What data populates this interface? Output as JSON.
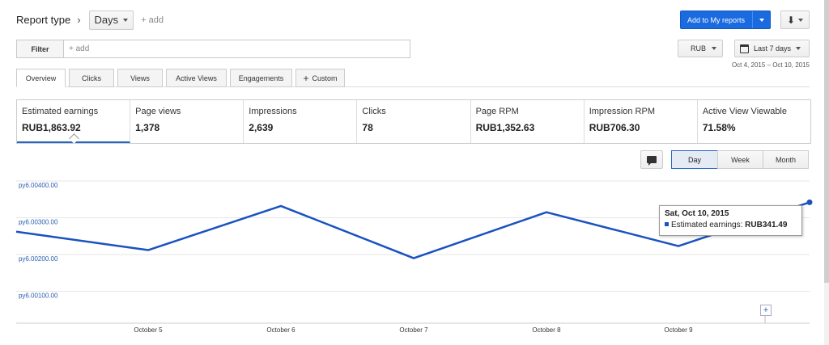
{
  "header": {
    "report_type": "Report type",
    "chevron": "›",
    "days": "Days",
    "add": "+ add"
  },
  "actions": {
    "add_to_reports": "Add to My reports",
    "download": "⬇"
  },
  "filter": {
    "label": "Filter",
    "add": "+ add"
  },
  "currency": "RUB",
  "date_range": {
    "label": "Last 7 days",
    "range": "Oct 4, 2015 – Oct 10, 2015"
  },
  "tabs": [
    {
      "label": "Overview"
    },
    {
      "label": "Clicks"
    },
    {
      "label": "Views"
    },
    {
      "label": "Active Views"
    },
    {
      "label": "Engagements"
    },
    {
      "label": "Custom",
      "icon": "plus-icon"
    }
  ],
  "metrics": [
    {
      "name": "Estimated earnings",
      "value": "RUB1,863.92"
    },
    {
      "name": "Page views",
      "value": "1,378"
    },
    {
      "name": "Impressions",
      "value": "2,639"
    },
    {
      "name": "Clicks",
      "value": "78"
    },
    {
      "name": "Page RPM",
      "value": "RUB1,352.63"
    },
    {
      "name": "Impression RPM",
      "value": "RUB706.30"
    },
    {
      "name": "Active View Viewable",
      "value": "71.58%"
    }
  ],
  "granularity": {
    "day": "Day",
    "week": "Week",
    "month": "Month",
    "selected": "Day"
  },
  "tooltip": {
    "date": "Sat, Oct 10, 2015",
    "metric": "Estimated earnings:",
    "value": "RUB341.49"
  },
  "colors": {
    "line": "#1a52c0",
    "accent": "#1a6ae0",
    "grid": "#e6e6e6"
  },
  "chart_data": {
    "type": "line",
    "x": [
      "Oct 4",
      "October 5",
      "October 6",
      "October 7",
      "October 8",
      "October 9",
      "Oct 10"
    ],
    "x_tick_labels": [
      "October 5",
      "October 6",
      "October 7",
      "October 8",
      "October 9"
    ],
    "y_tick_labels": [
      "ру6.00100.00",
      "ру6.00200.00",
      "ру6.00300.00",
      "ру6.00400.00"
    ],
    "y_ticks": [
      100,
      200,
      300,
      400
    ],
    "series": [
      {
        "values": [
          262,
          212,
          332,
          190,
          315,
          223,
          342
        ]
      }
    ],
    "ylim": [
      0,
      400
    ],
    "grid": true
  }
}
